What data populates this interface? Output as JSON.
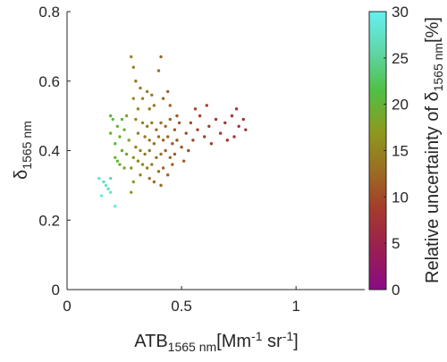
{
  "chart_data": {
    "type": "scatter",
    "x_label": [
      "ATB",
      "1565 nm",
      "[Mm",
      "-1",
      " sr",
      "-1",
      "]"
    ],
    "y_label": [
      "δ",
      "1565 nm"
    ],
    "colorbar_label": [
      "Relative uncertainty of δ",
      "1565 nm",
      "[%]"
    ],
    "xlim": [
      0,
      1.3
    ],
    "xticks": [
      0,
      0.5,
      1
    ],
    "ylim": [
      0,
      0.8
    ],
    "yticks": [
      0,
      0.2,
      0.4,
      0.6,
      0.8
    ],
    "clim": [
      0,
      30
    ],
    "cticks": [
      0,
      5,
      10,
      15,
      20,
      25,
      30
    ],
    "colormap": [
      "#8a0a86",
      "#9a1e52",
      "#a53a2c",
      "#9a6e22",
      "#8c9a1e",
      "#50c044",
      "#5fd6a8",
      "#66f0f0"
    ],
    "x": [
      0.14,
      0.15,
      0.16,
      0.17,
      0.18,
      0.19,
      0.21,
      0.19,
      0.19,
      0.2,
      0.22,
      0.21,
      0.23,
      0.24,
      0.22,
      0.25,
      0.26,
      0.24,
      0.27,
      0.23,
      0.26,
      0.28,
      0.29,
      0.28,
      0.25,
      0.21,
      0.19,
      0.28,
      0.29,
      0.41,
      0.4,
      0.3,
      0.32,
      0.35,
      0.37,
      0.33,
      0.29,
      0.38,
      0.36,
      0.31,
      0.42,
      0.45,
      0.44,
      0.3,
      0.33,
      0.35,
      0.37,
      0.39,
      0.41,
      0.43,
      0.45,
      0.47,
      0.49,
      0.31,
      0.34,
      0.36,
      0.38,
      0.4,
      0.42,
      0.44,
      0.46,
      0.48,
      0.3,
      0.32,
      0.34,
      0.36,
      0.39,
      0.41,
      0.43,
      0.45,
      0.47,
      0.31,
      0.33,
      0.35,
      0.37,
      0.4,
      0.42,
      0.44,
      0.38,
      0.32,
      0.29,
      0.46,
      0.41,
      0.36,
      0.5,
      0.48,
      0.52,
      0.54,
      0.55,
      0.57,
      0.58,
      0.6,
      0.62,
      0.63,
      0.65,
      0.67,
      0.69,
      0.7,
      0.72,
      0.74,
      0.75,
      0.77,
      0.78,
      0.73,
      0.53,
      0.56,
      0.61,
      0.51
    ],
    "values": [
      0.32,
      0.27,
      0.31,
      0.3,
      0.29,
      0.28,
      0.24,
      0.32,
      0.45,
      0.49,
      0.47,
      0.42,
      0.44,
      0.4,
      0.37,
      0.46,
      0.5,
      0.49,
      0.43,
      0.36,
      0.39,
      0.35,
      0.31,
      0.28,
      0.35,
      0.38,
      0.5,
      0.67,
      0.64,
      0.67,
      0.63,
      0.6,
      0.58,
      0.57,
      0.56,
      0.55,
      0.55,
      0.53,
      0.52,
      0.52,
      0.55,
      0.53,
      0.57,
      0.49,
      0.48,
      0.47,
      0.48,
      0.46,
      0.48,
      0.47,
      0.49,
      0.46,
      0.48,
      0.45,
      0.44,
      0.43,
      0.42,
      0.44,
      0.43,
      0.44,
      0.42,
      0.43,
      0.41,
      0.4,
      0.39,
      0.4,
      0.38,
      0.39,
      0.4,
      0.38,
      0.39,
      0.37,
      0.36,
      0.35,
      0.36,
      0.34,
      0.35,
      0.33,
      0.31,
      0.33,
      0.38,
      0.36,
      0.3,
      0.32,
      0.41,
      0.5,
      0.45,
      0.48,
      0.43,
      0.46,
      0.5,
      0.44,
      0.47,
      0.42,
      0.49,
      0.45,
      0.48,
      0.43,
      0.5,
      0.52,
      0.47,
      0.49,
      0.46,
      0.44,
      0.4,
      0.52,
      0.53,
      0.37
    ],
    "color_values": [
      28,
      29,
      27,
      28,
      27,
      28,
      29,
      26,
      20,
      21,
      20,
      21,
      19,
      19,
      20,
      19,
      18,
      20,
      18,
      19,
      18,
      17,
      17,
      17,
      18,
      20,
      20,
      15,
      15,
      12,
      13,
      14,
      14,
      14,
      14,
      15,
      16,
      14,
      14,
      15,
      12,
      12,
      12,
      15,
      15,
      14,
      14,
      13,
      13,
      12,
      12,
      11,
      11,
      15,
      14,
      14,
      13,
      13,
      12,
      12,
      11,
      11,
      15,
      15,
      14,
      14,
      13,
      13,
      12,
      12,
      11,
      15,
      15,
      14,
      14,
      13,
      12,
      12,
      13,
      15,
      16,
      11,
      13,
      14,
      11,
      11,
      10,
      10,
      10,
      9,
      9,
      9,
      9,
      9,
      8,
      8,
      8,
      8,
      8,
      7,
      7,
      7,
      7,
      8,
      10,
      10,
      9,
      11
    ]
  }
}
